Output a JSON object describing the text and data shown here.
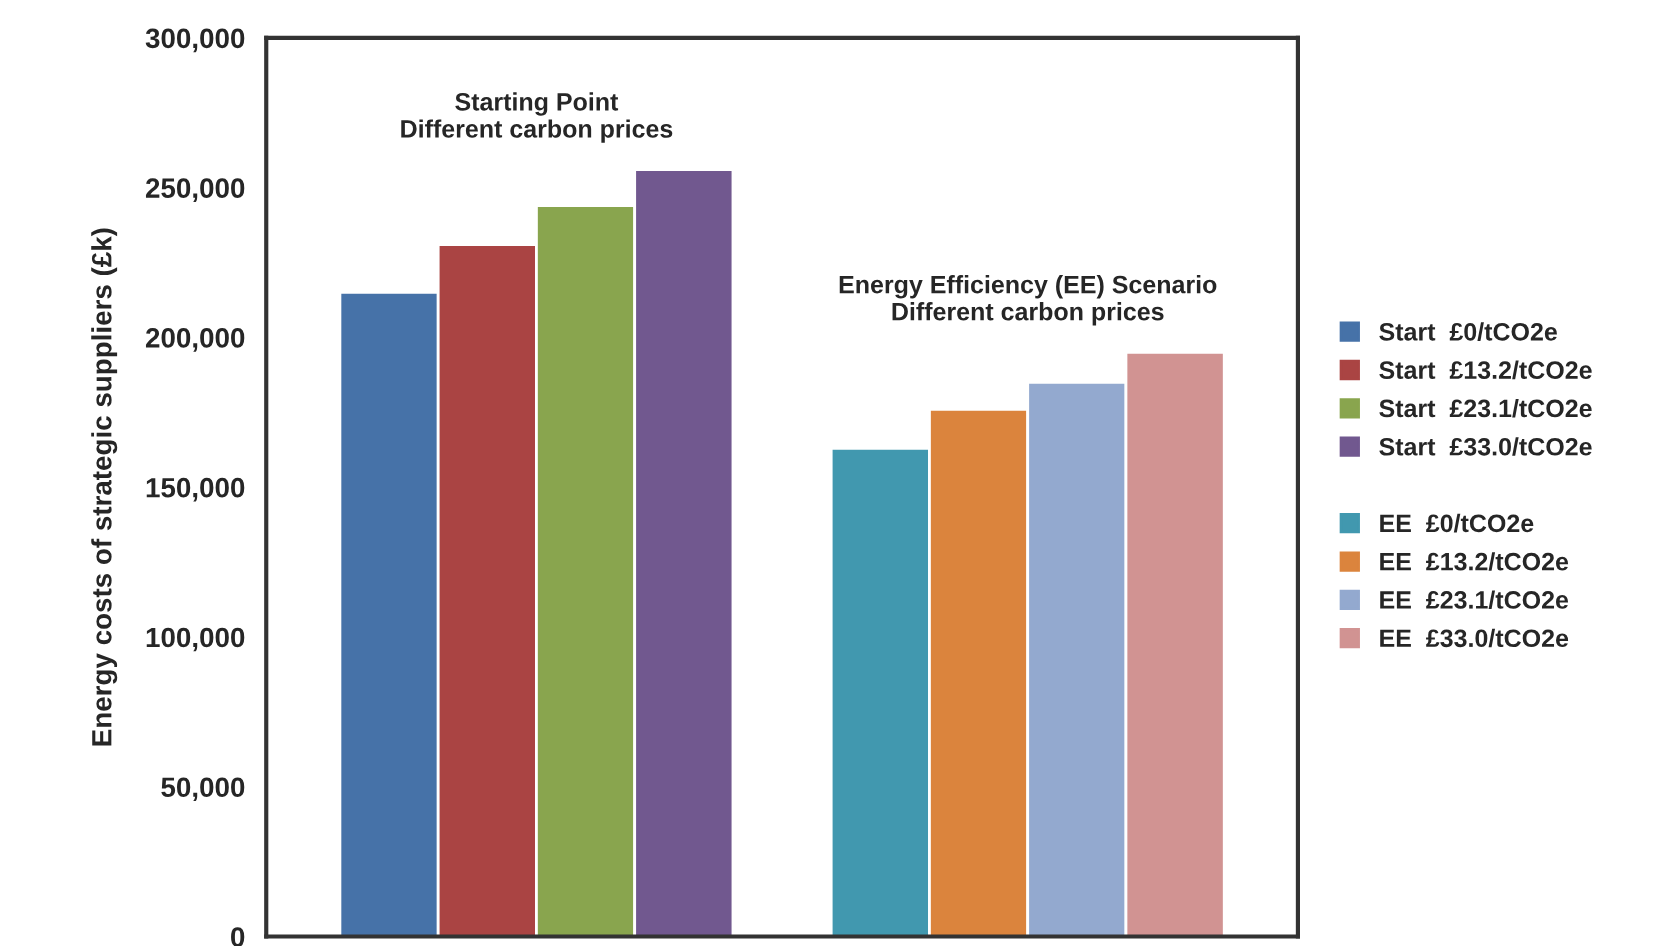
{
  "chart_data": {
    "type": "bar",
    "ylabel": "Energy costs of strategic suppliers (£k)",
    "categories": [
      null,
      null
    ],
    "series": [
      {
        "name": "Start  £0/tCO2e",
        "color": "#4672a8",
        "values": [
          215000,
          null
        ]
      },
      {
        "name": "Start  £13.2/tCO2e",
        "color": "#aa4443",
        "values": [
          231000,
          null
        ]
      },
      {
        "name": "Start  £23.1/tCO2e",
        "color": "#89a54e",
        "values": [
          244000,
          null
        ]
      },
      {
        "name": "Start  £33.0/tCO2e",
        "color": "#71588f",
        "values": [
          256000,
          null
        ]
      },
      {
        "name": "EE  £0/tCO2e",
        "color": "#4198af",
        "values": [
          null,
          163000
        ]
      },
      {
        "name": "EE  £13.2/tCO2e",
        "color": "#db843d",
        "values": [
          null,
          176000
        ]
      },
      {
        "name": "EE  £23.1/tCO2e",
        "color": "#93a9cf",
        "values": [
          null,
          185000
        ]
      },
      {
        "name": "EE  £33.0/tCO2e",
        "color": "#d19392",
        "values": [
          null,
          195000
        ]
      }
    ],
    "annotations": [
      "Starting Point\nDifferent carbon prices",
      "Energy Efficiency (EE) Scenario\nDifferent carbon prices"
    ],
    "ylim": [
      0,
      300000
    ],
    "yticks": [
      {
        "value": 0,
        "label": "0"
      },
      {
        "value": 50000,
        "label": "50,000"
      },
      {
        "value": 100000,
        "label": "100,000"
      },
      {
        "value": 150000,
        "label": "150,000"
      },
      {
        "value": 200000,
        "label": "200,000"
      },
      {
        "value": 250000,
        "label": "250,000"
      },
      {
        "value": 300000,
        "label": "300,000"
      }
    ],
    "grid": false,
    "legend": "right"
  }
}
